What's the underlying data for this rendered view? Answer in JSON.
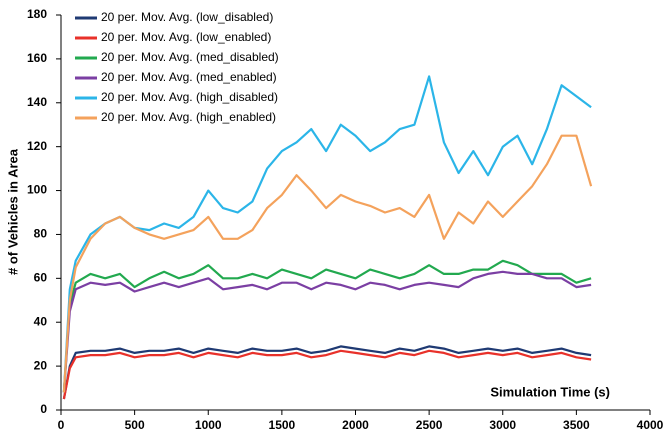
{
  "chart_data": {
    "type": "line",
    "x_label": "Simulation Time (s)",
    "y_label": "# of Vehicles in Area",
    "x": [
      20,
      60,
      100,
      200,
      300,
      400,
      500,
      600,
      700,
      800,
      900,
      1000,
      1100,
      1200,
      1300,
      1400,
      1500,
      1600,
      1700,
      1800,
      1900,
      2000,
      2100,
      2200,
      2300,
      2400,
      2500,
      2600,
      2700,
      2800,
      2900,
      3000,
      3100,
      3200,
      3300,
      3400,
      3500,
      3600
    ],
    "series": [
      {
        "name": "20 per. Mov. Avg. (low_disabled)",
        "color": "#1f3a73",
        "values": [
          5,
          20,
          26,
          27,
          27,
          28,
          26,
          27,
          27,
          28,
          26,
          28,
          27,
          26,
          28,
          27,
          27,
          28,
          26,
          27,
          29,
          28,
          27,
          26,
          28,
          27,
          29,
          28,
          26,
          27,
          28,
          27,
          28,
          26,
          27,
          28,
          26,
          25
        ]
      },
      {
        "name": "20 per. Mov. Avg. (low_enabled)",
        "color": "#e8312a",
        "values": [
          5,
          19,
          24,
          25,
          25,
          26,
          24,
          25,
          25,
          26,
          24,
          26,
          25,
          24,
          26,
          25,
          25,
          26,
          24,
          25,
          27,
          26,
          25,
          24,
          26,
          25,
          27,
          26,
          24,
          25,
          26,
          25,
          26,
          24,
          25,
          26,
          24,
          23
        ]
      },
      {
        "name": "20 per. Mov. Avg. (med_disabled)",
        "color": "#22a94f",
        "values": [
          8,
          48,
          58,
          62,
          60,
          62,
          56,
          60,
          63,
          60,
          62,
          66,
          60,
          60,
          62,
          60,
          64,
          62,
          60,
          64,
          62,
          60,
          64,
          62,
          60,
          62,
          66,
          62,
          62,
          64,
          64,
          68,
          66,
          62,
          62,
          62,
          58,
          60
        ]
      },
      {
        "name": "20 per. Mov. Avg. (med_enabled)",
        "color": "#7b3fa3",
        "values": [
          8,
          45,
          55,
          58,
          57,
          58,
          54,
          56,
          58,
          56,
          58,
          60,
          55,
          56,
          57,
          55,
          58,
          58,
          55,
          58,
          57,
          55,
          58,
          57,
          55,
          57,
          58,
          57,
          56,
          60,
          62,
          63,
          62,
          62,
          60,
          60,
          56,
          57
        ]
      },
      {
        "name": "20 per. Mov. Avg. (high_disabled)",
        "color": "#2bb5e8",
        "values": [
          8,
          55,
          68,
          80,
          85,
          88,
          83,
          82,
          85,
          83,
          88,
          100,
          92,
          90,
          95,
          110,
          118,
          122,
          128,
          118,
          130,
          125,
          118,
          122,
          128,
          130,
          152,
          122,
          108,
          118,
          107,
          120,
          125,
          112,
          128,
          148,
          143,
          138
        ]
      },
      {
        "name": "20 per. Mov. Avg. (high_enabled)",
        "color": "#f4a25c",
        "values": [
          8,
          50,
          65,
          78,
          85,
          88,
          83,
          80,
          78,
          80,
          82,
          88,
          78,
          78,
          82,
          92,
          98,
          107,
          100,
          92,
          98,
          95,
          93,
          90,
          92,
          88,
          98,
          78,
          90,
          85,
          95,
          88,
          95,
          102,
          112,
          125,
          125,
          102
        ]
      }
    ],
    "xlim": [
      0,
      4000
    ],
    "xticks": [
      0,
      500,
      1000,
      1500,
      2000,
      2500,
      3000,
      3500,
      4000
    ],
    "ylim": [
      0,
      180
    ],
    "yticks": [
      0,
      20,
      40,
      60,
      80,
      100,
      120,
      140,
      160,
      180
    ],
    "grid": false,
    "legend": "upper left"
  }
}
